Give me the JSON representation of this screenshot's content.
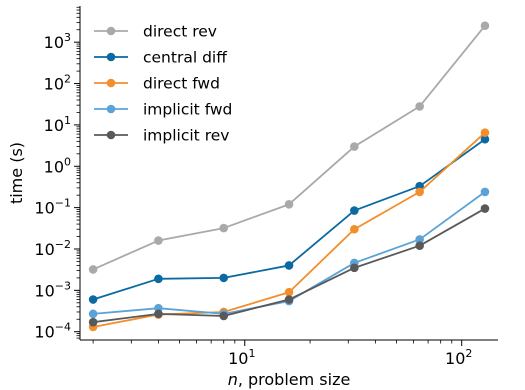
{
  "chart_data": {
    "type": "line",
    "xscale": "log",
    "yscale": "log",
    "xlim": [
      1.74,
      147
    ],
    "ylim": [
      6.3e-05,
      7500
    ],
    "xlabel_italic": "n",
    "xlabel_rest": ", problem size",
    "ylabel": "time (s)",
    "x_ticks": [
      {
        "base": "10",
        "exp": "1",
        "value": 10
      },
      {
        "base": "10",
        "exp": "2",
        "value": 100
      }
    ],
    "y_ticks": [
      {
        "base": "10",
        "exp": "−4",
        "value": 0.0001
      },
      {
        "base": "10",
        "exp": "−3",
        "value": 0.001
      },
      {
        "base": "10",
        "exp": "−2",
        "value": 0.01
      },
      {
        "base": "10",
        "exp": "−1",
        "value": 0.1
      },
      {
        "base": "10",
        "exp": "0",
        "value": 1
      },
      {
        "base": "10",
        "exp": "1",
        "value": 10
      },
      {
        "base": "10",
        "exp": "2",
        "value": 100
      },
      {
        "base": "10",
        "exp": "3",
        "value": 1000
      }
    ],
    "legend_position": "top-left",
    "x": [
      2,
      4,
      8,
      16,
      32,
      64,
      128
    ],
    "series": [
      {
        "name": "direct rev",
        "color": "#a9a9a9",
        "values": [
          0.0032,
          0.016,
          0.032,
          0.12,
          3.0,
          28,
          2500
        ]
      },
      {
        "name": "central diff",
        "color": "#0a6aa1",
        "values": [
          0.0006,
          0.0019,
          0.002,
          0.004,
          0.085,
          0.33,
          4.5
        ]
      },
      {
        "name": "direct fwd",
        "color": "#f28e2b",
        "values": [
          0.00013,
          0.00026,
          0.0003,
          0.0009,
          0.03,
          0.24,
          6.5
        ]
      },
      {
        "name": "implicit fwd",
        "color": "#5ba3d6",
        "values": [
          0.00027,
          0.00037,
          0.00027,
          0.00055,
          0.0046,
          0.017,
          0.24
        ]
      },
      {
        "name": "implicit rev",
        "color": "#595959",
        "values": [
          0.00017,
          0.00027,
          0.00024,
          0.0006,
          0.0035,
          0.012,
          0.095
        ]
      }
    ]
  }
}
